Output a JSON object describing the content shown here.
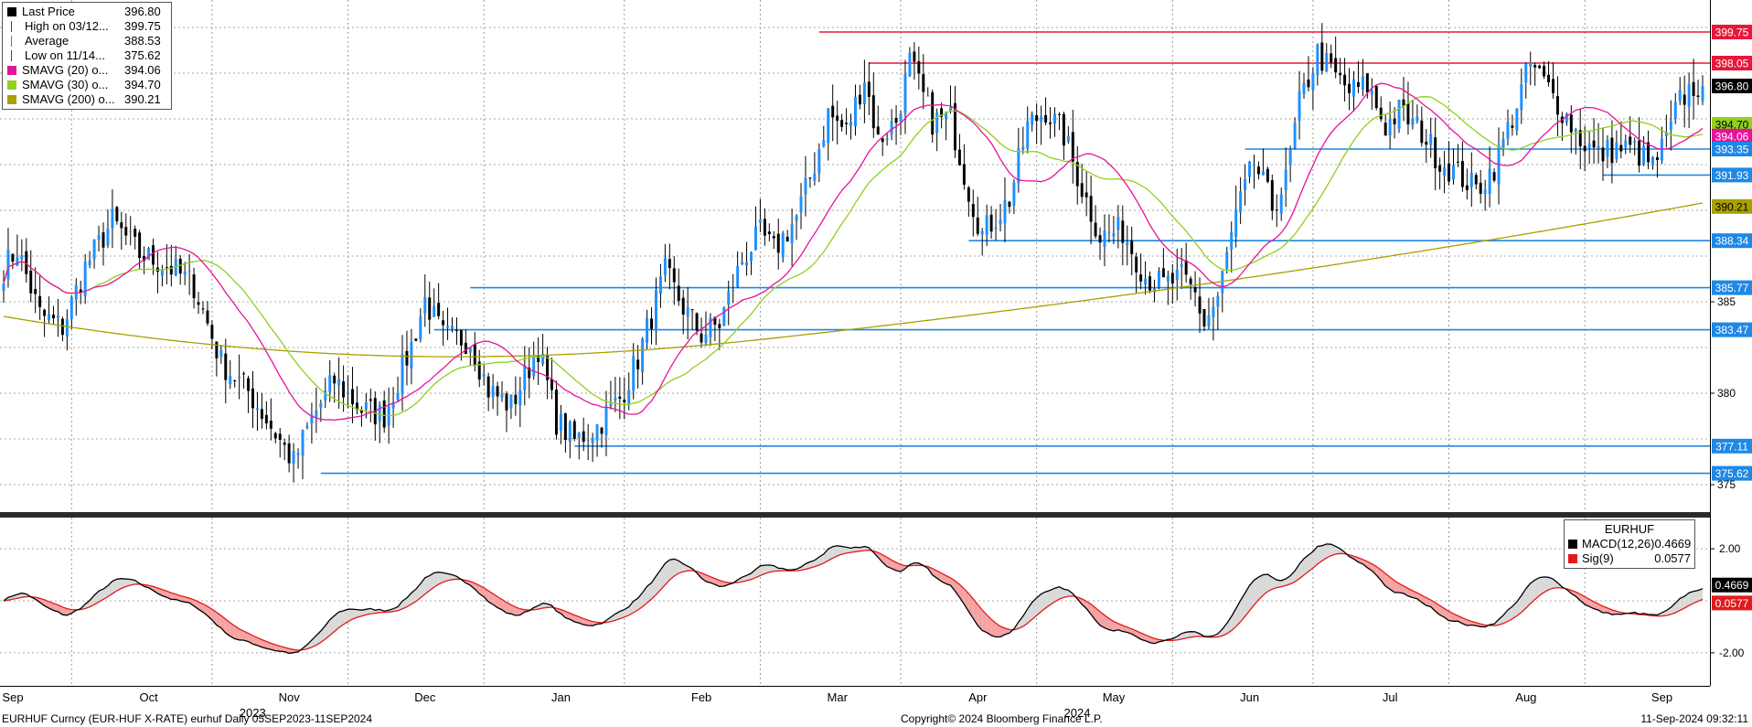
{
  "legend": [
    {
      "name": "Last Price",
      "value": "396.80",
      "color": "#000000",
      "icon": "square"
    },
    {
      "name": "High on 03/12...",
      "value": "399.75",
      "color": "#444444",
      "icon": "high-marker"
    },
    {
      "name": "Average",
      "value": "388.53",
      "color": "#777777",
      "icon": "average-marker"
    },
    {
      "name": "Low on 11/14...",
      "value": "375.62",
      "color": "#444444",
      "icon": "low-marker"
    },
    {
      "name": "SMAVG (20)  o...",
      "value": "394.06",
      "color": "#e6139a",
      "icon": "square"
    },
    {
      "name": "SMAVG (30)  o...",
      "value": "394.70",
      "color": "#8fd11d",
      "icon": "square"
    },
    {
      "name": "SMAVG (200)  o...",
      "value": "390.21",
      "color": "#a8a000",
      "icon": "square"
    }
  ],
  "macd_legend": {
    "title": "EURHUF",
    "items": [
      {
        "name": "MACD(12,26)",
        "value": "0.4669",
        "color": "#000000"
      },
      {
        "name": "Sig(9)",
        "value": "0.0577",
        "color": "#e31a1c"
      }
    ]
  },
  "footer": {
    "left": "EURHUF Curncy (EUR-HUF X-RATE) eurhuf  Daily 05SEP2023-11SEP2024",
    "center": "Copyright© 2024 Bloomberg Finance L.P.",
    "right": "11-Sep-2024 09:32:11"
  },
  "colors": {
    "bull": "#1e90ff",
    "bear": "#000000",
    "sma20": "#e6139a",
    "sma30": "#8fd11d",
    "sma200": "#a8a000",
    "hline_blue": "#1e88e5",
    "hline_red": "#e8173a",
    "macd": "#000000",
    "signal": "#e31a1c"
  },
  "chart_data": [
    {
      "type": "candlestick",
      "title": "",
      "ylim": [
        373.5,
        401.5
      ],
      "y_ticks": [
        375,
        380,
        385
      ],
      "x_months": [
        {
          "label": "Sep",
          "year": ""
        },
        {
          "label": "Oct",
          "year": ""
        },
        {
          "label": "Nov",
          "year": "2023"
        },
        {
          "label": "Dec",
          "year": ""
        },
        {
          "label": "Jan",
          "year": ""
        },
        {
          "label": "Feb",
          "year": ""
        },
        {
          "label": "Mar",
          "year": ""
        },
        {
          "label": "Apr",
          "year": ""
        },
        {
          "label": "May",
          "year": "2024"
        },
        {
          "label": "Jun",
          "year": ""
        },
        {
          "label": "Jul",
          "year": ""
        },
        {
          "label": "Aug",
          "year": ""
        },
        {
          "label": "Sep",
          "year": ""
        }
      ],
      "close_path": [
        [
          0,
          386.8
        ],
        [
          3,
          387.9
        ],
        [
          8,
          384.3
        ],
        [
          13,
          383.6
        ],
        [
          18,
          386.9
        ],
        [
          24,
          389.4
        ],
        [
          30,
          387.6
        ],
        [
          36,
          387.0
        ],
        [
          42,
          385.9
        ],
        [
          48,
          381.7
        ],
        [
          54,
          380.1
        ],
        [
          60,
          377.8
        ],
        [
          64,
          376.2
        ],
        [
          68,
          378.6
        ],
        [
          73,
          380.7
        ],
        [
          79,
          379.1
        ],
        [
          84,
          378.8
        ],
        [
          90,
          382.6
        ],
        [
          93,
          385.1
        ],
        [
          97,
          383.1
        ],
        [
          103,
          382.9
        ],
        [
          107,
          380.2
        ],
        [
          112,
          379.3
        ],
        [
          118,
          382.5
        ],
        [
          122,
          378.5
        ],
        [
          126,
          377.4
        ],
        [
          131,
          378.2
        ],
        [
          136,
          379.7
        ],
        [
          140,
          381.9
        ],
        [
          146,
          386.6
        ],
        [
          150,
          384.7
        ],
        [
          154,
          383.2
        ],
        [
          158,
          383.8
        ],
        [
          163,
          387.3
        ],
        [
          167,
          388.7
        ],
        [
          170,
          387.8
        ],
        [
          175,
          389.6
        ],
        [
          179,
          392.5
        ],
        [
          182,
          395.3
        ],
        [
          186,
          394.3
        ],
        [
          190,
          397.3
        ],
        [
          193,
          393.8
        ],
        [
          197,
          394.9
        ],
        [
          200,
          398.1
        ],
        [
          205,
          394.9
        ],
        [
          209,
          395.0
        ],
        [
          213,
          391.1
        ],
        [
          216,
          388.7
        ],
        [
          222,
          390.6
        ],
        [
          226,
          394.6
        ],
        [
          230,
          395.5
        ],
        [
          234,
          394.1
        ],
        [
          238,
          391.2
        ],
        [
          242,
          388.6
        ],
        [
          247,
          388.9
        ],
        [
          252,
          386.4
        ],
        [
          256,
          385.9
        ],
        [
          260,
          386.3
        ],
        [
          263,
          385.4
        ],
        [
          265,
          383.8
        ],
        [
          268,
          385.2
        ],
        [
          272,
          389.7
        ],
        [
          276,
          392.6
        ],
        [
          280,
          390.2
        ],
        [
          283,
          391.6
        ],
        [
          286,
          395.8
        ],
        [
          290,
          398.6
        ],
        [
          293,
          397.6
        ],
        [
          297,
          396.5
        ],
        [
          301,
          396.8
        ],
        [
          305,
          394.6
        ],
        [
          308,
          395.4
        ],
        [
          313,
          394.3
        ],
        [
          317,
          392.7
        ],
        [
          322,
          391.8
        ],
        [
          325,
          391.1
        ],
        [
          329,
          392.4
        ],
        [
          333,
          395.1
        ],
        [
          337,
          398.0
        ],
        [
          340,
          397.0
        ],
        [
          344,
          395.5
        ],
        [
          348,
          393.9
        ],
        [
          352,
          393.0
        ],
        [
          356,
          393.4
        ],
        [
          360,
          393.3
        ],
        [
          364,
          392.4
        ],
        [
          367,
          393.8
        ],
        [
          370,
          396.0
        ],
        [
          373,
          396.8
        ]
      ],
      "hlines": [
        {
          "value": 399.75,
          "label": "399.75",
          "start": 180,
          "color": "red"
        },
        {
          "value": 398.05,
          "label": "398.05",
          "start": 191,
          "color": "red"
        },
        {
          "value": 393.35,
          "label": "393.35",
          "start": 274,
          "color": "blue"
        },
        {
          "value": 391.93,
          "label": "391.93",
          "start": 353,
          "color": "blue"
        },
        {
          "value": 388.34,
          "label": "388.34",
          "start": 213,
          "color": "blue"
        },
        {
          "value": 385.77,
          "label": "385.77",
          "start": 103,
          "color": "blue"
        },
        {
          "value": 383.47,
          "label": "383.47",
          "start": 95,
          "color": "blue"
        },
        {
          "value": 377.11,
          "label": "377.11",
          "start": 126,
          "color": "blue"
        },
        {
          "value": 375.62,
          "label": "375.62",
          "start": 70,
          "color": "blue"
        }
      ],
      "right_tags": [
        {
          "value": 399.75,
          "label": "399.75",
          "bg": "#e8173a",
          "fg": "#ffffff"
        },
        {
          "value": 398.05,
          "label": "398.05",
          "bg": "#e8173a",
          "fg": "#ffffff"
        },
        {
          "value": 396.8,
          "label": "396.80",
          "bg": "#000000",
          "fg": "#ffffff"
        },
        {
          "value": 394.7,
          "label": "394.70",
          "bg": "#8fd11d",
          "fg": "#000000"
        },
        {
          "value": 394.06,
          "label": "394.06",
          "bg": "#e6139a",
          "fg": "#ffffff"
        },
        {
          "value": 393.35,
          "label": "393.35",
          "bg": "#1e88e5",
          "fg": "#ffffff"
        },
        {
          "value": 391.93,
          "label": "391.93",
          "bg": "#1e88e5",
          "fg": "#ffffff"
        },
        {
          "value": 390.21,
          "label": "390.21",
          "bg": "#a8a000",
          "fg": "#000000"
        },
        {
          "value": 388.34,
          "label": "388.34",
          "bg": "#1e88e5",
          "fg": "#ffffff"
        },
        {
          "value": 385.77,
          "label": "385.77",
          "bg": "#1e88e5",
          "fg": "#ffffff"
        },
        {
          "value": 383.47,
          "label": "383.47",
          "bg": "#1e88e5",
          "fg": "#ffffff"
        },
        {
          "value": 377.11,
          "label": "377.11",
          "bg": "#1e88e5",
          "fg": "#ffffff"
        },
        {
          "value": 375.62,
          "label": "375.62",
          "bg": "#1e88e5",
          "fg": "#ffffff"
        }
      ],
      "series": [
        {
          "name": "SMAVG (20)",
          "last": 394.06
        },
        {
          "name": "SMAVG (30)",
          "last": 394.7
        },
        {
          "name": "SMAVG (200)",
          "last": 390.21
        }
      ]
    },
    {
      "type": "line",
      "title": "",
      "ylim": [
        -3.2,
        3.2
      ],
      "y_ticks": [
        {
          "value": 2.0,
          "label": "2.00"
        },
        {
          "value": -2.0,
          "label": "-2.00"
        }
      ],
      "series": [
        {
          "name": "MACD(12,26)",
          "last": 0.4669
        },
        {
          "name": "Sig(9)",
          "last": 0.0577
        }
      ],
      "right_tags": [
        {
          "value": 0.4669,
          "label": "0.4669",
          "bg": "#000000",
          "fg": "#ffffff"
        },
        {
          "value": 0.0577,
          "label": "0.0577",
          "bg": "#e31a1c",
          "fg": "#ffffff"
        }
      ]
    }
  ]
}
